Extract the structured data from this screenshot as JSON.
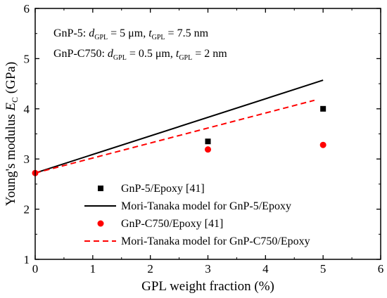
{
  "chart_data": {
    "type": "scatter",
    "xlabel": "GPL weight fraction (%)",
    "ylabel_main": "Young's modulus ",
    "ylabel_symbol": "E",
    "ylabel_sub": "C",
    "ylabel_unit": " (GPa)",
    "xlim": [
      0,
      6
    ],
    "ylim": [
      1,
      6
    ],
    "xticks": [
      "0",
      "1",
      "2",
      "3",
      "4",
      "5",
      "6"
    ],
    "yticks": [
      "1",
      "2",
      "3",
      "4",
      "5",
      "6"
    ],
    "grid": false,
    "legend_position": "lower-right",
    "annotations": [
      {
        "prefix": "GnP-5: ",
        "d_sym": "d",
        "d_sub": "GPL",
        "d_val": " = 5 μm, ",
        "t_sym": "t",
        "t_sub": "GPL",
        "t_val": " = 7.5 nm"
      },
      {
        "prefix": "GnP-C750: ",
        "d_sym": "d",
        "d_sub": "GPL",
        "d_val": " = 0.5 μm, ",
        "t_sym": "t",
        "t_sub": "GPL",
        "t_val": " = 2 nm"
      }
    ],
    "series": [
      {
        "name": "GnP-5/Epoxy [41]",
        "kind": "marker",
        "marker": "square",
        "color": "#000000",
        "x": [
          3,
          5
        ],
        "y": [
          3.35,
          4.0
        ]
      },
      {
        "name": "Mori-Tanaka model for GnP-5/Epoxy",
        "kind": "line",
        "dash": "solid",
        "color": "#000000",
        "x": [
          0,
          5
        ],
        "y": [
          2.72,
          4.57
        ]
      },
      {
        "name": "GnP-C750/Epoxy [41]",
        "kind": "marker",
        "marker": "circle",
        "color": "#ff0000",
        "x": [
          0,
          3,
          5
        ],
        "y": [
          2.72,
          3.19,
          3.28
        ]
      },
      {
        "name": "Mori-Tanaka model for GnP-C750/Epoxy",
        "kind": "line",
        "dash": "dashed",
        "color": "#ff0000",
        "x": [
          0,
          4.85
        ],
        "y": [
          2.72,
          4.17
        ]
      }
    ]
  }
}
